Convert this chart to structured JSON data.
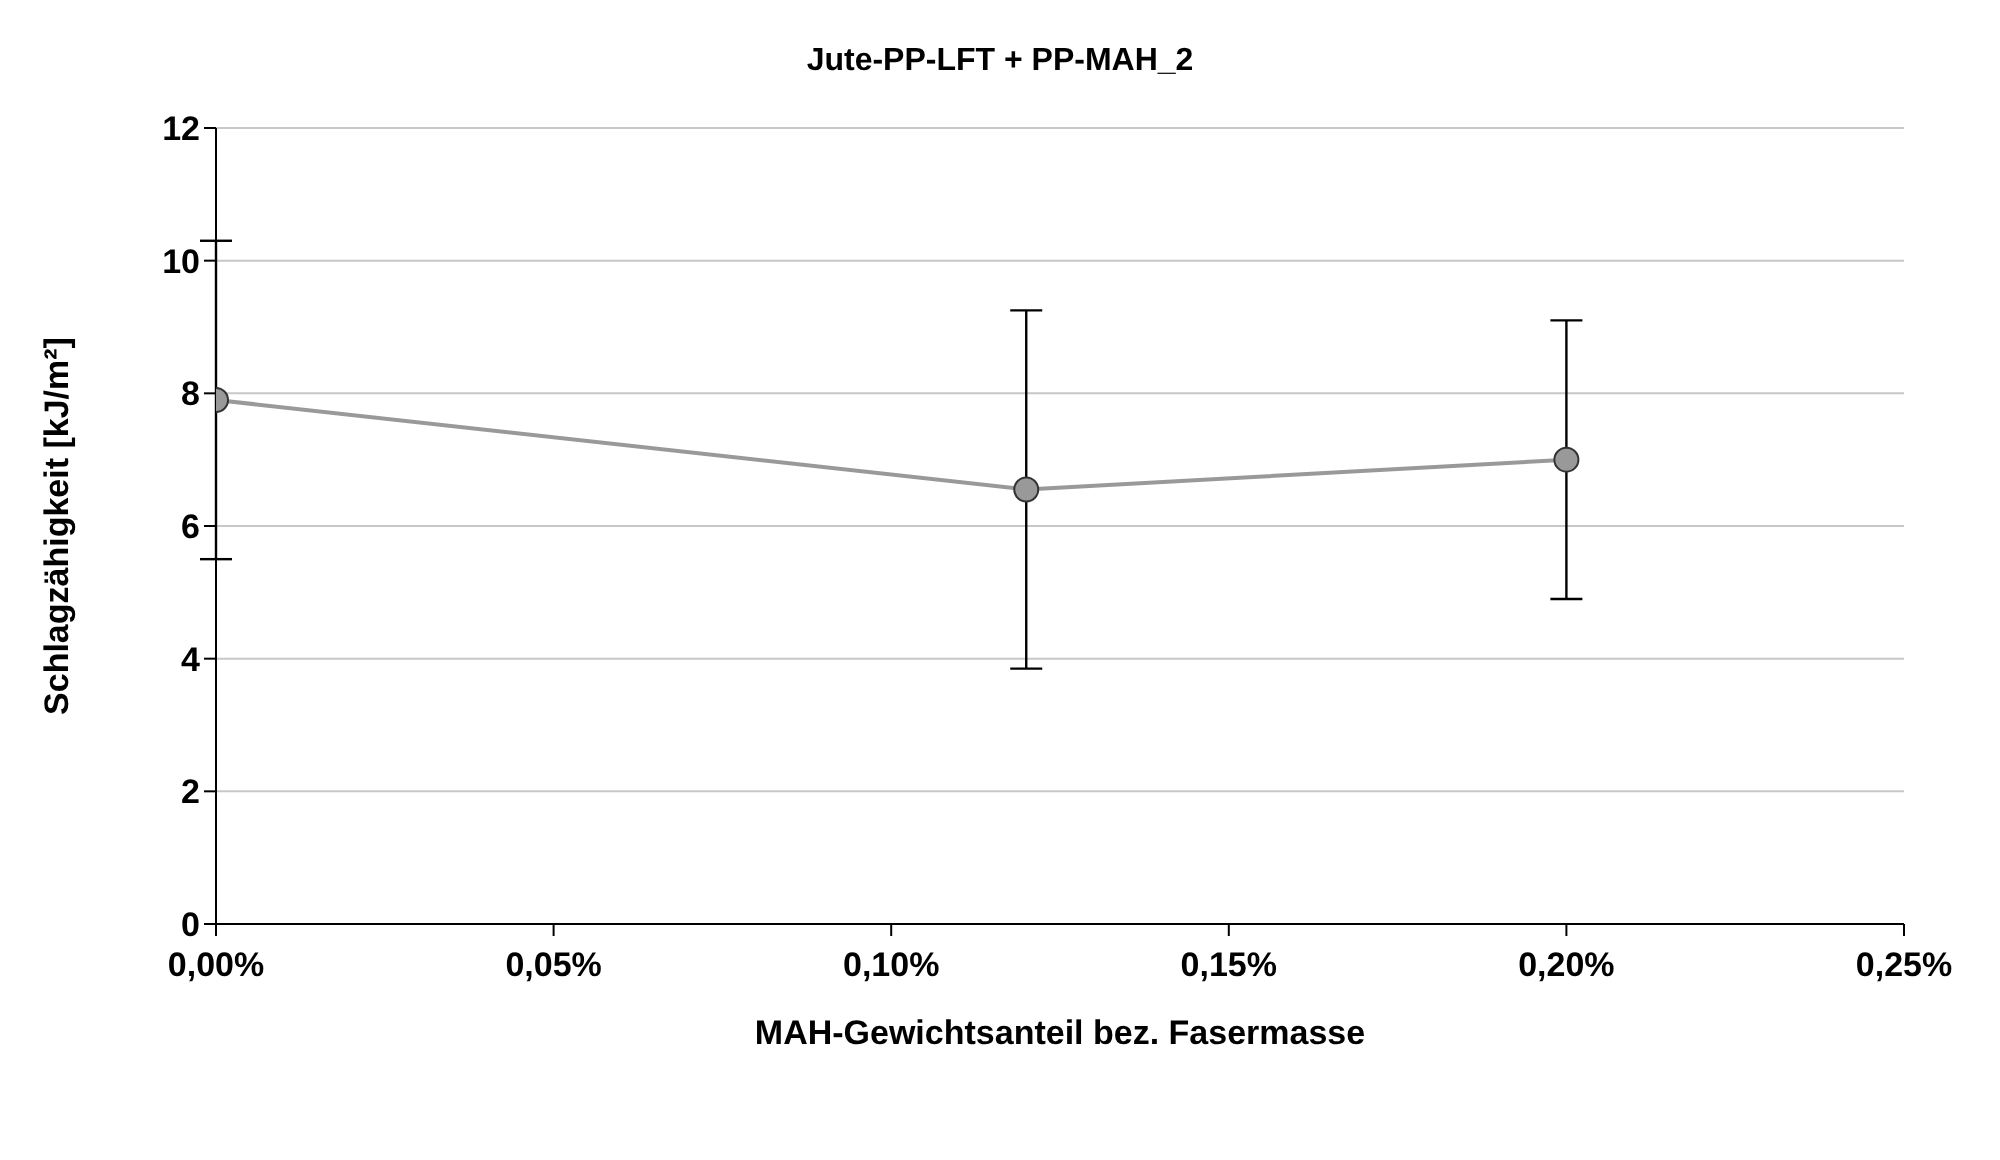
{
  "chart_data": {
    "type": "line",
    "title": "Jute-PP-LFT + PP-MAH_2",
    "xlabel": "MAH-Gewichtsanteil bez. Fasermasse",
    "ylabel": "Schlagzähigkeit [kJ/m²]",
    "x": [
      0,
      0.12,
      0.2
    ],
    "series": [
      {
        "color": "#999999",
        "values": [
          7.9,
          6.55,
          7.0
        ],
        "errors": [
          2.4,
          2.7,
          2.1
        ]
      }
    ],
    "xlim": [
      0,
      0.25
    ],
    "xticks": [
      {
        "value": 0,
        "label": "0,00%"
      },
      {
        "value": 0.05,
        "label": "0,05%"
      },
      {
        "value": 0.1,
        "label": "0,10%"
      },
      {
        "value": 0.15,
        "label": "0,15%"
      },
      {
        "value": 0.2,
        "label": "0,20%"
      },
      {
        "value": 0.25,
        "label": "0,25%"
      }
    ],
    "ylim": [
      0,
      12
    ],
    "yticks": [
      0,
      2,
      4,
      6,
      8,
      10,
      12
    ],
    "grid": "y",
    "legend": false,
    "marker": "circle",
    "line_style": "solid"
  }
}
